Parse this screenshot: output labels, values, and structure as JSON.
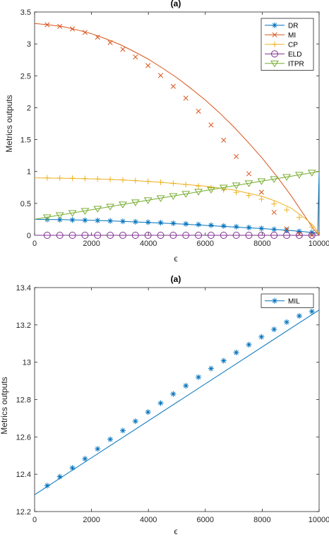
{
  "colors": {
    "DR": "#0072BD",
    "MI": "#D95319",
    "CP": "#EDB120",
    "ELD": "#7E2F8E",
    "ITPR": "#77AC30",
    "MIL": "#0072BD",
    "axis": "#262626"
  },
  "chart_data": [
    {
      "type": "line",
      "title": "(a)",
      "xlabel": "ϵ",
      "ylabel": "Metrics outputs",
      "xlim": [
        0,
        10000
      ],
      "ylim": [
        0,
        3.5
      ],
      "xticks": [
        0,
        2000,
        4000,
        6000,
        8000,
        10000
      ],
      "xtick_labels": [
        "0",
        "2000",
        "4000",
        "6000",
        "8000",
        "10000"
      ],
      "yticks": [
        0,
        0.5,
        1,
        1.5,
        2,
        2.5,
        3,
        3.5
      ],
      "ytick_labels": [
        "0",
        "0.5",
        "1",
        "1.5",
        "2",
        "2.5",
        "3",
        "3.5"
      ],
      "grid": false,
      "legend_position": "top-right",
      "marker_x": [
        443,
        886,
        1329,
        1772,
        2215,
        2658,
        3101,
        3544,
        3987,
        4430,
        4873,
        5316,
        5759,
        6202,
        6645,
        7088,
        7531,
        7974,
        8417,
        8860,
        9303,
        9746
      ],
      "series": [
        {
          "name": "DR",
          "color_key": "DR",
          "marker": "asterisk",
          "x": [
            0,
            1000,
            2000,
            3000,
            4000,
            5000,
            6000,
            7000,
            8000,
            9000,
            9500,
            9800,
            9950,
            10000
          ],
          "values": [
            0.25,
            0.245,
            0.235,
            0.22,
            0.2,
            0.18,
            0.155,
            0.13,
            0.105,
            0.075,
            0.055,
            0.04,
            0.03,
            0.98
          ],
          "marker_values": [
            0.248,
            0.244,
            0.24,
            0.236,
            0.232,
            0.226,
            0.219,
            0.212,
            0.205,
            0.197,
            0.188,
            0.179,
            0.169,
            0.158,
            0.146,
            0.134,
            0.121,
            0.107,
            0.093,
            0.078,
            0.061,
            0.044
          ]
        },
        {
          "name": "MI",
          "color_key": "MI",
          "marker": "x",
          "x": [
            0,
            500,
            1000,
            1500,
            2000,
            2500,
            3000,
            3500,
            4000,
            4500,
            5000,
            5500,
            6000,
            6500,
            7000,
            7500,
            8000,
            8500,
            9000,
            9500,
            9800,
            10000
          ],
          "values": [
            3.32,
            3.3,
            3.27,
            3.22,
            3.16,
            3.08,
            2.99,
            2.88,
            2.76,
            2.62,
            2.47,
            2.3,
            2.12,
            1.92,
            1.7,
            1.46,
            1.21,
            0.93,
            0.63,
            0.3,
            0.1,
            0.0
          ],
          "marker_values": [
            3.3,
            3.275,
            3.235,
            3.18,
            3.105,
            3.02,
            2.915,
            2.795,
            2.66,
            2.505,
            2.335,
            2.15,
            1.945,
            1.73,
            1.49,
            1.235,
            0.965,
            0.675,
            0.36,
            0.1,
            0.02,
            0.0
          ]
        },
        {
          "name": "CP",
          "color_key": "CP",
          "marker": "plus",
          "x": [
            0,
            1000,
            2000,
            3000,
            4000,
            5000,
            6000,
            7000,
            8000,
            8500,
            9000,
            9500,
            9800,
            10000
          ],
          "values": [
            0.9,
            0.895,
            0.885,
            0.87,
            0.845,
            0.81,
            0.77,
            0.71,
            0.61,
            0.53,
            0.43,
            0.27,
            0.15,
            0.02
          ],
          "marker_values": [
            0.9,
            0.898,
            0.895,
            0.89,
            0.884,
            0.877,
            0.868,
            0.858,
            0.846,
            0.832,
            0.815,
            0.795,
            0.772,
            0.745,
            0.712,
            0.673,
            0.625,
            0.566,
            0.492,
            0.398,
            0.28,
            0.13
          ]
        },
        {
          "name": "ELD",
          "color_key": "ELD",
          "marker": "circle",
          "x": [
            0,
            10000
          ],
          "values": [
            0.0,
            0.0
          ],
          "marker_values": [
            0,
            0,
            0,
            0,
            0,
            0,
            0,
            0,
            0,
            0,
            0,
            0,
            0,
            0,
            0,
            0,
            0,
            0,
            0,
            0,
            0,
            0
          ]
        },
        {
          "name": "ITPR",
          "color_key": "ITPR",
          "marker": "triangle-down",
          "x": [
            0,
            2000,
            4000,
            6000,
            8000,
            10000
          ],
          "values": [
            0.25,
            0.4,
            0.55,
            0.7,
            0.85,
            1.0
          ],
          "marker_values": [
            0.283,
            0.316,
            0.349,
            0.382,
            0.416,
            0.449,
            0.483,
            0.516,
            0.549,
            0.582,
            0.615,
            0.649,
            0.682,
            0.715,
            0.748,
            0.782,
            0.815,
            0.848,
            0.881,
            0.914,
            0.948,
            0.981
          ]
        }
      ]
    },
    {
      "type": "line",
      "title": "(a)",
      "xlabel": "ϵ",
      "ylabel": "Metrics outputs",
      "xlim": [
        0,
        10000
      ],
      "ylim": [
        12.2,
        13.4
      ],
      "xticks": [
        0,
        2000,
        4000,
        6000,
        8000,
        10000
      ],
      "xtick_labels": [
        "0",
        "2000",
        "4000",
        "6000",
        "8000",
        "10000"
      ],
      "yticks": [
        12.2,
        12.4,
        12.6,
        12.8,
        13,
        13.2,
        13.4
      ],
      "ytick_labels": [
        "12.2",
        "12.4",
        "12.6",
        "12.8",
        "13",
        "13.2",
        "13.4"
      ],
      "grid": false,
      "legend_position": "top-right",
      "marker_x": [
        443,
        886,
        1329,
        1772,
        2215,
        2658,
        3101,
        3544,
        3987,
        4430,
        4873,
        5316,
        5759,
        6202,
        6645,
        7088,
        7531,
        7974,
        8417,
        8860,
        9303,
        9746
      ],
      "series": [
        {
          "name": "MIL",
          "color_key": "MIL",
          "marker": "asterisk",
          "x": [
            0,
            10000
          ],
          "values": [
            12.29,
            13.28
          ],
          "marker_values": [
            12.339,
            12.387,
            12.434,
            12.483,
            12.536,
            12.587,
            12.634,
            12.684,
            12.733,
            12.781,
            12.83,
            12.874,
            12.92,
            12.966,
            13.008,
            13.052,
            13.094,
            13.136,
            13.176,
            13.215,
            13.248,
            13.272
          ]
        }
      ]
    }
  ]
}
